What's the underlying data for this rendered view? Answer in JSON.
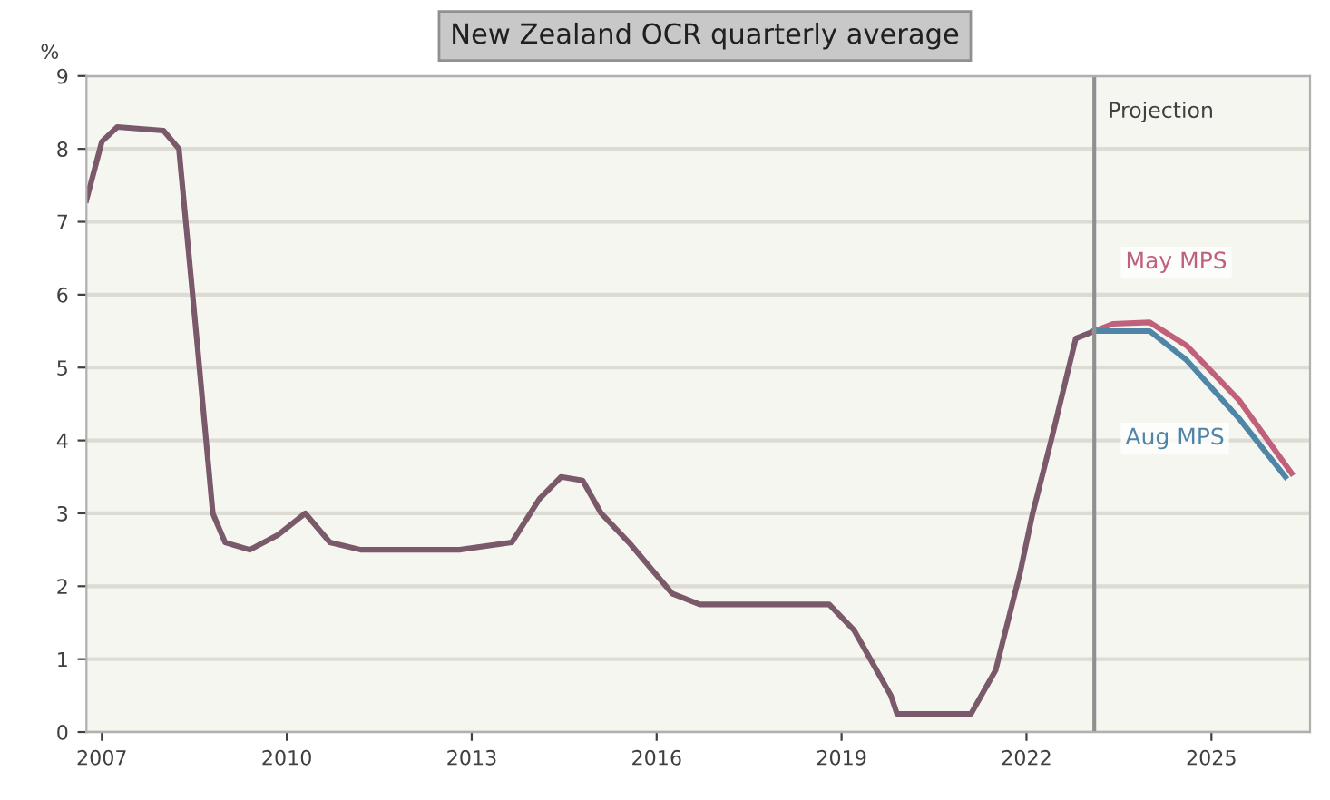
{
  "chart_data": {
    "type": "line",
    "title": "New Zealand OCR quarterly average",
    "ylabel": "%",
    "xlim": [
      2006.75,
      2026.6
    ],
    "xticks": [
      2007,
      2010,
      2013,
      2016,
      2019,
      2022,
      2025
    ],
    "ylim": [
      0,
      9
    ],
    "yticks": [
      0,
      1,
      2,
      3,
      4,
      5,
      6,
      7,
      8,
      9
    ],
    "grid": "y",
    "legend": false,
    "marker": "none",
    "line_style": "solid",
    "ref_lines": [
      {
        "axis": "x",
        "value": 2023.1,
        "label": "Projection",
        "color": "#909090"
      }
    ],
    "series": [
      {
        "color": "#7a5a6a",
        "x": [
          2006.75,
          2007.0,
          2007.25,
          2008.0,
          2008.25,
          2008.55,
          2008.8,
          2009.0,
          2009.4,
          2009.85,
          2010.3,
          2010.7,
          2011.2,
          2012.8,
          2013.65,
          2014.1,
          2014.45,
          2014.8,
          2015.1,
          2015.55,
          2016.25,
          2016.7,
          2018.8,
          2019.2,
          2019.8,
          2019.9,
          2021.1,
          2021.5,
          2021.9,
          2022.1,
          2022.4,
          2022.8,
          2023.1
        ],
        "values": [
          7.3,
          8.1,
          8.3,
          8.25,
          8.0,
          5.3,
          3.0,
          2.6,
          2.5,
          2.7,
          3.0,
          2.6,
          2.5,
          2.5,
          2.6,
          3.2,
          3.5,
          3.45,
          3.0,
          2.6,
          1.9,
          1.75,
          1.75,
          1.4,
          0.5,
          0.25,
          0.25,
          0.85,
          2.2,
          3.0,
          4.0,
          5.4,
          5.5
        ]
      },
      {
        "name": "May MPS",
        "color": "#c0607a",
        "x": [
          2023.1,
          2023.4,
          2024.0,
          2024.6,
          2025.45,
          2026.3
        ],
        "values": [
          5.5,
          5.6,
          5.62,
          5.3,
          4.55,
          3.55
        ]
      },
      {
        "name": "Aug MPS",
        "color": "#4f86a8",
        "x": [
          2023.1,
          2023.4,
          2024.0,
          2024.6,
          2025.45,
          2026.2
        ],
        "values": [
          5.5,
          5.5,
          5.5,
          5.1,
          4.3,
          3.5
        ]
      }
    ]
  }
}
